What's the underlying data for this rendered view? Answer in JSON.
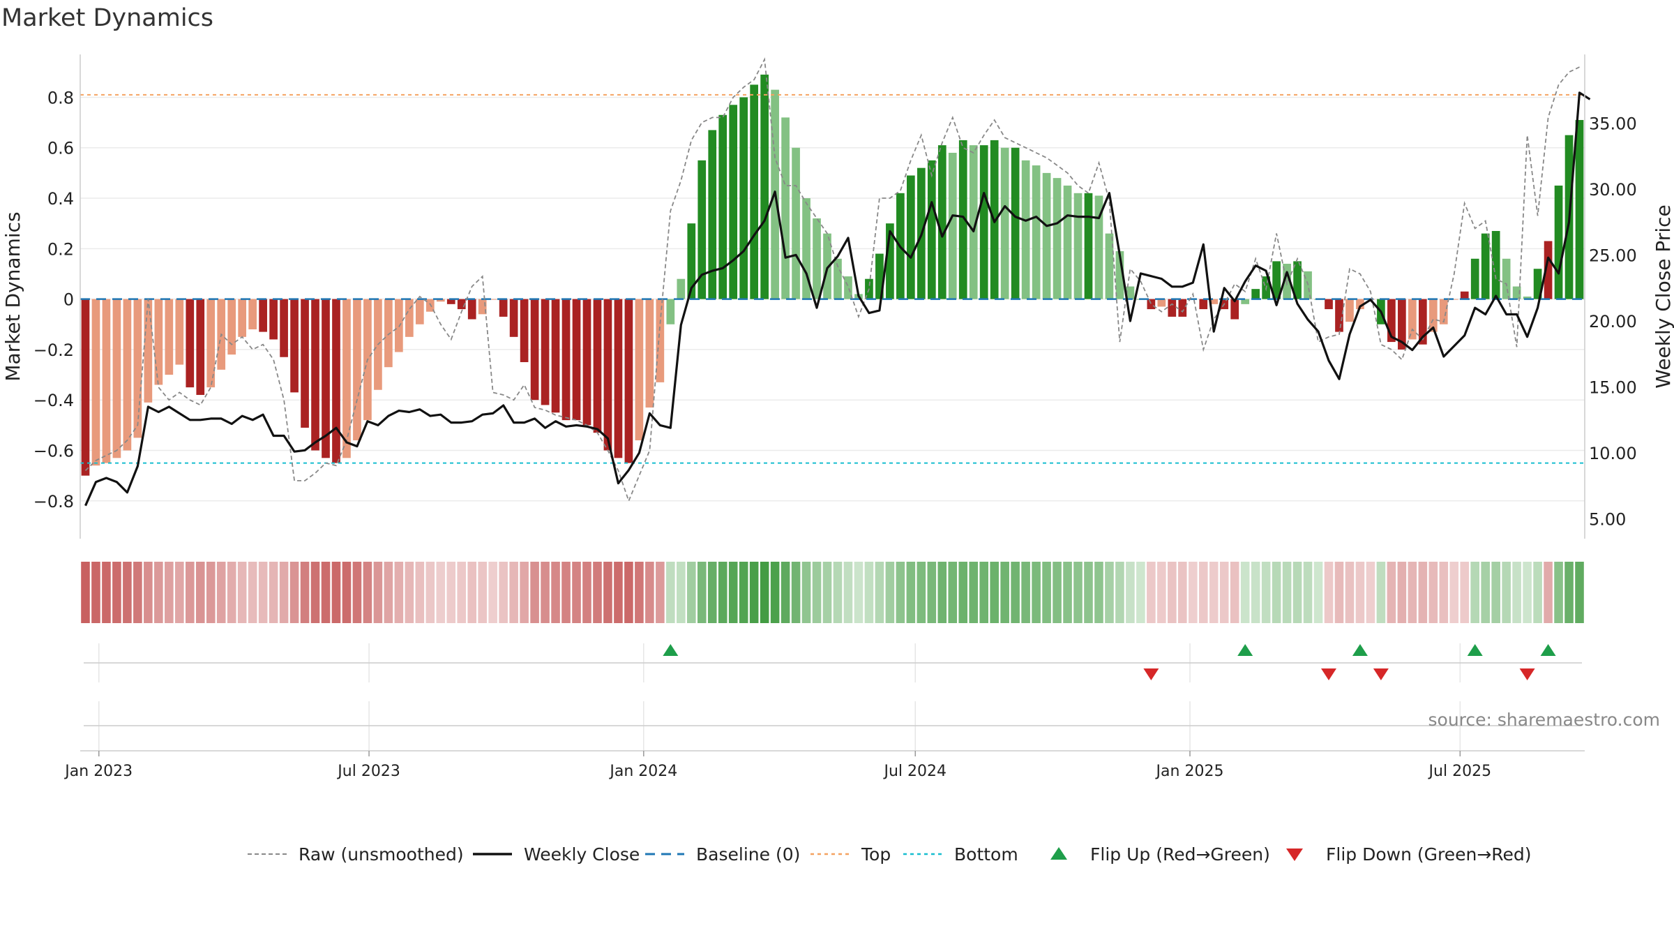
{
  "title": "Market Dynamics",
  "source": "source: sharemaestro.com",
  "colors": {
    "pos_strong": "#228b22",
    "pos_weak": "#83c183",
    "neg_strong": "#aa2222",
    "neg_weak": "#e89a7c",
    "close": "#111111",
    "raw": "#888888",
    "baseline": "#1f77b4",
    "top": "#f4a261",
    "bottom": "#17becf",
    "flip_up": "#1e9e4a",
    "flip_down": "#d62728"
  },
  "chart_data": {
    "type": "bar",
    "title": "Market Dynamics",
    "ylabel": "Market Dynamics",
    "y2label": "Weekly Close Price",
    "ylim": [
      -0.95,
      0.97
    ],
    "y2lim": [
      3.5,
      40.2
    ],
    "yticks": [
      -0.8,
      -0.6,
      -0.4,
      -0.2,
      0,
      0.2,
      0.4,
      0.6,
      0.8
    ],
    "yticklabels": [
      "−0.8",
      "−0.6",
      "−0.4",
      "−0.2",
      "0",
      "0.2",
      "0.4",
      "0.6",
      "0.8"
    ],
    "y2ticks": [
      5,
      10,
      15,
      20,
      25,
      30,
      35
    ],
    "y2ticklabels": [
      "5.00",
      "10.00",
      "15.00",
      "20.00",
      "25.00",
      "30.00",
      "35.00"
    ],
    "xticks": [
      "2023-01-01",
      "2023-07-01",
      "2024-01-01",
      "2024-07-01",
      "2025-01-01",
      "2025-07-01"
    ],
    "xticklabels": [
      "Jan 2023",
      "Jul 2023",
      "Jan 2024",
      "Jul 2024",
      "Jan 2025",
      "Jul 2025"
    ],
    "start_week": "2022-12-23",
    "top_line": 0.81,
    "bottom_line": -0.65,
    "grid": true,
    "legend": "bottom",
    "legend_items": [
      "Raw (unsmoothed)",
      "Weekly Close",
      "Baseline (0)",
      "Top",
      "Bottom",
      "Flip Up (Red→Green)",
      "Flip Down (Green→Red)"
    ],
    "smoothed": [
      -0.7,
      -0.66,
      -0.65,
      -0.63,
      -0.6,
      -0.55,
      -0.41,
      -0.34,
      -0.3,
      -0.26,
      -0.35,
      -0.38,
      -0.35,
      -0.28,
      -0.22,
      -0.15,
      -0.12,
      -0.13,
      -0.16,
      -0.23,
      -0.37,
      -0.51,
      -0.6,
      -0.63,
      -0.65,
      -0.63,
      -0.56,
      -0.48,
      -0.36,
      -0.27,
      -0.21,
      -0.15,
      -0.1,
      -0.05,
      -0.01,
      -0.02,
      -0.04,
      -0.08,
      -0.06,
      0,
      -0.07,
      -0.15,
      -0.25,
      -0.4,
      -0.42,
      -0.45,
      -0.48,
      -0.48,
      -0.5,
      -0.53,
      -0.6,
      -0.63,
      -0.65,
      -0.56,
      -0.43,
      -0.33,
      -0.1,
      0.08,
      0.3,
      0.55,
      0.67,
      0.73,
      0.77,
      0.8,
      0.85,
      0.89,
      0.83,
      0.72,
      0.6,
      0.4,
      0.32,
      0.26,
      0.16,
      0.09,
      0.02,
      0.08,
      0.18,
      0.3,
      0.42,
      0.49,
      0.52,
      0.55,
      0.61,
      0.58,
      0.63,
      0.61,
      0.61,
      0.63,
      0.6,
      0.6,
      0.55,
      0.53,
      0.5,
      0.48,
      0.45,
      0.42,
      0.42,
      0.41,
      0.26,
      0.19,
      0.05,
      0,
      -0.04,
      -0.03,
      -0.07,
      -0.07,
      0,
      -0.04,
      -0.02,
      -0.04,
      -0.08,
      -0.02,
      0.04,
      0.09,
      0.15,
      0.14,
      0.15,
      0.11,
      0,
      -0.04,
      -0.13,
      -0.09,
      -0.04,
      0,
      -0.1,
      -0.17,
      -0.2,
      -0.16,
      -0.18,
      -0.13,
      -0.1,
      0,
      0.03,
      0.16,
      0.26,
      0.27,
      0.16,
      0.05,
      0.01,
      0.12,
      0.23,
      0.45,
      0.65,
      0.71
    ],
    "raw": [
      -0.68,
      -0.64,
      -0.62,
      -0.6,
      -0.56,
      -0.5,
      0,
      -0.35,
      -0.4,
      -0.37,
      -0.4,
      -0.42,
      -0.35,
      -0.14,
      -0.18,
      -0.15,
      -0.2,
      -0.18,
      -0.24,
      -0.4,
      -0.72,
      -0.72,
      -0.69,
      -0.65,
      -0.66,
      -0.56,
      -0.4,
      -0.24,
      -0.18,
      -0.14,
      -0.11,
      -0.04,
      0.01,
      -0.02,
      -0.1,
      -0.16,
      -0.05,
      0.05,
      0.09,
      -0.37,
      -0.38,
      -0.4,
      -0.34,
      -0.43,
      -0.44,
      -0.46,
      -0.47,
      -0.48,
      -0.5,
      -0.53,
      -0.6,
      -0.68,
      -0.8,
      -0.7,
      -0.6,
      -0.1,
      0.35,
      0.47,
      0.63,
      0.7,
      0.72,
      0.72,
      0.8,
      0.84,
      0.87,
      0.95,
      0.56,
      0.45,
      0.45,
      0.38,
      0.32,
      0.26,
      0.13,
      0.05,
      -0.07,
      0.04,
      0.4,
      0.4,
      0.43,
      0.55,
      0.65,
      0.49,
      0.62,
      0.72,
      0.6,
      0.58,
      0.65,
      0.71,
      0.64,
      0.62,
      0.6,
      0.58,
      0.56,
      0.53,
      0.5,
      0.45,
      0.42,
      0.54,
      0.39,
      -0.17,
      0.12,
      0.07,
      -0.02,
      -0.05,
      -0.02,
      -0.05,
      0.02,
      -0.2,
      -0.08,
      -0.02,
      0.06,
      0.03,
      0.16,
      0.04,
      0.26,
      0.06,
      0.16,
      0.06,
      -0.17,
      -0.15,
      -0.14,
      0.12,
      0.1,
      0.03,
      -0.18,
      -0.2,
      -0.24,
      -0.12,
      -0.16,
      -0.08,
      -0.09,
      0.1,
      0.38,
      0.28,
      0.31,
      0.08,
      0.06,
      -0.19,
      0.65,
      0.33,
      0.72,
      0.85,
      0.9,
      0.92
    ],
    "close": [
      6,
      7.8,
      8.1,
      7.8,
      7,
      9,
      13.5,
      13.1,
      13.5,
      13,
      12.5,
      12.5,
      12.6,
      12.6,
      12.2,
      12.8,
      12.5,
      12.9,
      11.3,
      11.3,
      10.1,
      10.2,
      10.8,
      11.3,
      11.9,
      10.8,
      10.5,
      12.4,
      12.1,
      12.8,
      13.2,
      13.1,
      13.3,
      12.8,
      12.9,
      12.3,
      12.3,
      12.4,
      12.9,
      13,
      13.6,
      12.3,
      12.3,
      12.6,
      11.9,
      12.4,
      12,
      12.1,
      12,
      11.8,
      11.1,
      7.7,
      8.7,
      10,
      13,
      12.1,
      11.9,
      19.7,
      22.5,
      23.5,
      23.8,
      24,
      24.6,
      25.3,
      26.5,
      27.6,
      29.8,
      24.8,
      25,
      23.6,
      21,
      24,
      24.9,
      26.3,
      21.9,
      20.6,
      20.8,
      26.8,
      25.6,
      24.8,
      26.5,
      29,
      26.4,
      28,
      27.9,
      26.8,
      29.7,
      27.5,
      28.7,
      27.9,
      27.6,
      27.9,
      27.2,
      27.4,
      28,
      27.9,
      27.9,
      27.8,
      29.7,
      25,
      20,
      23.6,
      23.4,
      23.2,
      22.6,
      22.6,
      22.9,
      25.8,
      19.2,
      22.5,
      21.5,
      23,
      24.2,
      23.8,
      21.2,
      23.7,
      21.3,
      20.1,
      19.2,
      17,
      15.6,
      19,
      21.1,
      21.6,
      20.7,
      18.8,
      18.4,
      17.8,
      18.8,
      19.5,
      17.3,
      18.1,
      18.9,
      21,
      20.5,
      21.9,
      20.5,
      20.5,
      18.8,
      21,
      24.8,
      23.6,
      27.5,
      37.3,
      36.8
    ],
    "segments": [
      {
        "start": 0,
        "end": 55,
        "direction": "negative"
      },
      {
        "start": 56,
        "end": 101,
        "direction": "positive"
      },
      {
        "start": 102,
        "end": 110,
        "direction": "negative"
      },
      {
        "start": 111,
        "end": 118,
        "direction": "positive"
      },
      {
        "start": 119,
        "end": 123,
        "direction": "negative"
      },
      {
        "start": 124,
        "end": 124,
        "direction": "positive"
      },
      {
        "start": 125,
        "end": 132,
        "direction": "negative"
      },
      {
        "start": 133,
        "end": 139,
        "direction": "positive"
      },
      {
        "start": 140,
        "end": 140,
        "direction": "negative"
      },
      {
        "start": 141,
        "end": 144,
        "direction": "positive"
      }
    ],
    "flips_up": [
      56,
      111,
      122,
      133,
      140
    ],
    "flips_down": [
      102,
      119,
      124,
      138
    ]
  }
}
